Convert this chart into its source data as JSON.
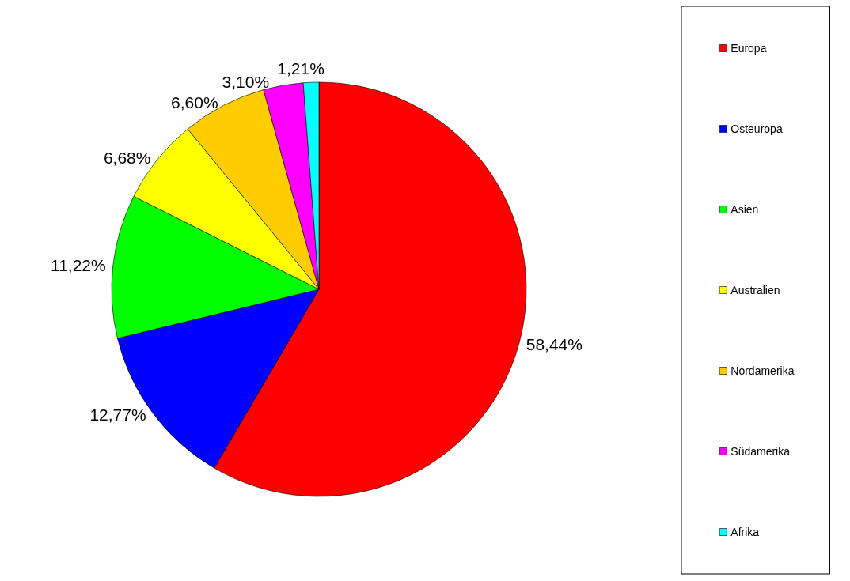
{
  "chart_data": {
    "type": "pie",
    "categories": [
      "Europa",
      "Osteuropa",
      "Asien",
      "Australien",
      "Nordamerika",
      "Südamerika",
      "Afrika"
    ],
    "values": [
      58.44,
      12.77,
      11.22,
      6.68,
      6.6,
      3.1,
      1.21
    ],
    "value_labels": [
      "58,44%",
      "12,77%",
      "11,22%",
      "6,68%",
      "6,60%",
      "3,10%",
      "1,21%"
    ],
    "colors": [
      "#ff0000",
      "#0000ff",
      "#00ff00",
      "#ffff00",
      "#ffcc00",
      "#ff00ff",
      "#00ffff"
    ],
    "legend": "right"
  }
}
